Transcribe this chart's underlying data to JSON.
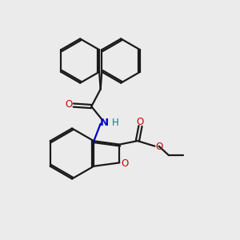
{
  "bg_color": "#ebebeb",
  "bond_color": "#1a1a1a",
  "o_color": "#cc0000",
  "n_color": "#0000cc",
  "h_color": "#008080",
  "lw": 1.6,
  "xlim": [
    0,
    10
  ],
  "ylim": [
    0,
    10
  ]
}
